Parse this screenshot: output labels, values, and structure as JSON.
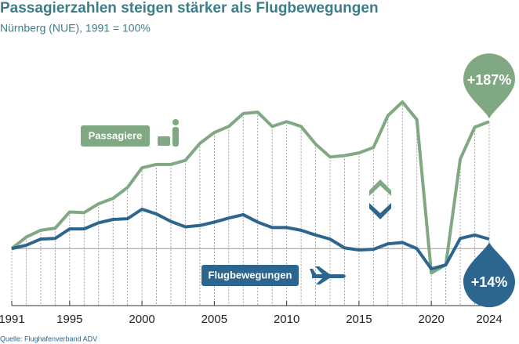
{
  "chart_data": {
    "type": "line",
    "title": "Passagierzahlen steigen stärker als Flugbewegungen",
    "subtitle": "Nürnberg (NUE), 1991 = 100%",
    "source": "Quelle: Flughafenverband ADV",
    "x": [
      1991,
      1992,
      1993,
      1994,
      1995,
      1996,
      1997,
      1998,
      1999,
      2000,
      2001,
      2002,
      2003,
      2004,
      2005,
      2006,
      2007,
      2008,
      2009,
      2010,
      2011,
      2012,
      2013,
      2014,
      2015,
      2016,
      2017,
      2018,
      2019,
      2020,
      2021,
      2022,
      2023,
      2024
    ],
    "xlim": [
      1991,
      2024
    ],
    "xticks": [
      1991,
      1995,
      2000,
      2005,
      2010,
      2015,
      2020,
      2024
    ],
    "ylim": [
      -84,
      297
    ],
    "series": [
      {
        "name": "Passagiere",
        "color": "#7fa883",
        "values": [
          0,
          17,
          27,
          30,
          54,
          53,
          66,
          74,
          90,
          119,
          124,
          124,
          130,
          155,
          171,
          180,
          199,
          201,
          180,
          187,
          180,
          154,
          135,
          137,
          141,
          149,
          196,
          216,
          190,
          -36,
          -24,
          132,
          179,
          187
        ],
        "value_labels": [
          null,
          null,
          null,
          null,
          null,
          null,
          null,
          null,
          null,
          null,
          null,
          null,
          null,
          null,
          null,
          null,
          null,
          null,
          null,
          null,
          null,
          null,
          null,
          null,
          null,
          null,
          null,
          null,
          null,
          null,
          null,
          null,
          null,
          "+187%"
        ]
      },
      {
        "name": "Flugbewegungen",
        "color": "#2c668f",
        "values": [
          0,
          5,
          14,
          15,
          29,
          29,
          38,
          43,
          44,
          58,
          51,
          40,
          32,
          34,
          39,
          45,
          50,
          39,
          31,
          31,
          27,
          20,
          14,
          1,
          -2,
          -1,
          7,
          9,
          0,
          -30,
          -24,
          15,
          20,
          14
        ],
        "value_labels": [
          null,
          null,
          null,
          null,
          null,
          null,
          null,
          null,
          null,
          null,
          null,
          null,
          null,
          null,
          null,
          null,
          null,
          null,
          null,
          null,
          null,
          null,
          null,
          null,
          null,
          null,
          null,
          null,
          null,
          null,
          null,
          null,
          null,
          "+14%"
        ]
      }
    ]
  }
}
